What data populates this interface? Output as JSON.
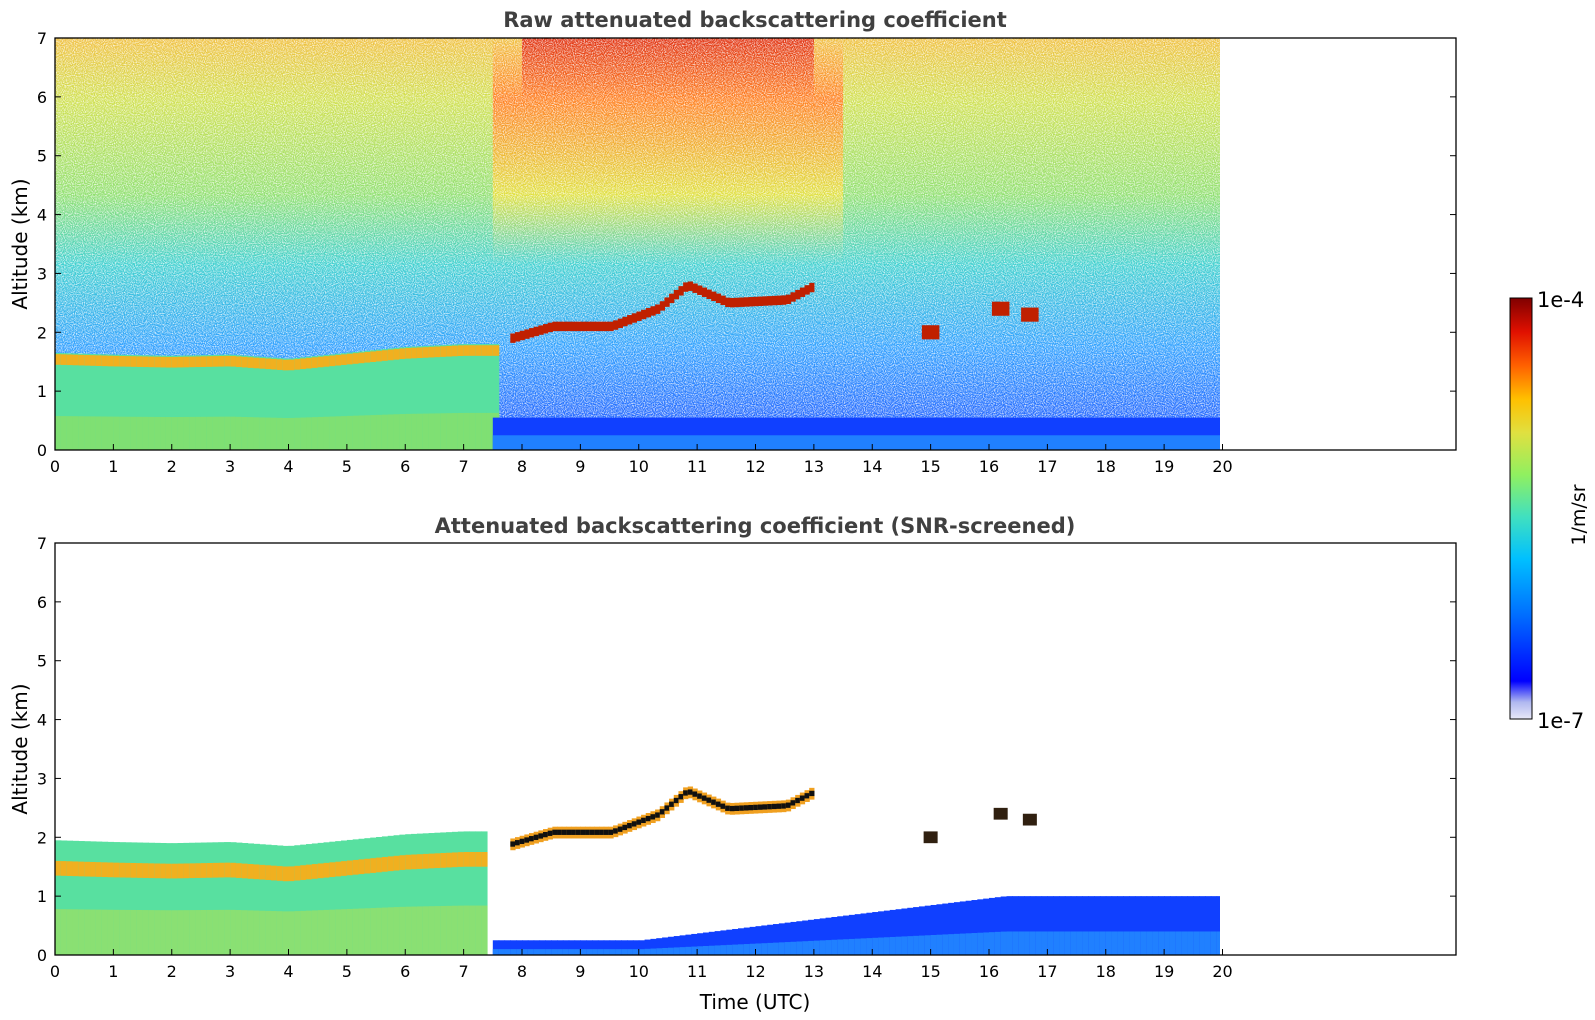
{
  "chart_data": [
    {
      "type": "heatmap",
      "title": "Raw attenuated backscattering coefficient",
      "xlabel": "",
      "ylabel": "Altitude (km)",
      "xlim": [
        0,
        24
      ],
      "ylim": [
        0,
        7
      ],
      "x_ticks": [
        "0",
        "1",
        "2",
        "3",
        "4",
        "5",
        "6",
        "7",
        "8",
        "9",
        "10",
        "11",
        "12",
        "13",
        "14",
        "15",
        "16",
        "17",
        "18",
        "19",
        "20"
      ],
      "y_ticks": [
        "0",
        "1",
        "2",
        "3",
        "4",
        "5",
        "6",
        "7"
      ],
      "data_extent_x": [
        0,
        20
      ],
      "features": {
        "boundary_layer_top_km": [
          [
            0,
            1.65
          ],
          [
            1,
            1.62
          ],
          [
            2,
            1.6
          ],
          [
            3,
            1.62
          ],
          [
            4,
            1.55
          ],
          [
            5,
            1.65
          ],
          [
            6,
            1.75
          ],
          [
            7,
            1.8
          ]
        ],
        "elevated_layer_km": [
          [
            7.8,
            1.9
          ],
          [
            8.5,
            2.1
          ],
          [
            9.5,
            2.1
          ],
          [
            10.3,
            2.4
          ],
          [
            10.8,
            2.8
          ],
          [
            11.5,
            2.5
          ],
          [
            12.5,
            2.55
          ],
          [
            13,
            2.8
          ]
        ],
        "isolated_features_km": [
          [
            15,
            2.0
          ],
          [
            16.2,
            2.4
          ],
          [
            16.7,
            2.3
          ]
        ],
        "low_layer_after_7_5h_km": [
          0,
          0.6
        ]
      }
    },
    {
      "type": "heatmap",
      "title": "Attenuated backscattering coefficient (SNR-screened)",
      "xlabel": "Time (UTC)",
      "ylabel": "Altitude (km)",
      "xlim": [
        0,
        24
      ],
      "ylim": [
        0,
        7
      ],
      "x_ticks": [
        "0",
        "1",
        "2",
        "3",
        "4",
        "5",
        "6",
        "7",
        "8",
        "9",
        "10",
        "11",
        "12",
        "13",
        "14",
        "15",
        "16",
        "17",
        "18",
        "19",
        "20"
      ],
      "y_ticks": [
        "0",
        "1",
        "2",
        "3",
        "4",
        "5",
        "6",
        "7"
      ],
      "data_extent_x": [
        0,
        20
      ]
    }
  ],
  "colorbar": {
    "label": "1/m/sr",
    "max_label": "1e-4",
    "min_label": "1e-7",
    "scale": "log",
    "colors": [
      "#e8e8f8",
      "#b0b8f0",
      "#0000ff",
      "#0070ff",
      "#00c0ff",
      "#40e0c0",
      "#90f060",
      "#e0e040",
      "#ffc000",
      "#ff6000",
      "#e01000",
      "#800000"
    ]
  }
}
